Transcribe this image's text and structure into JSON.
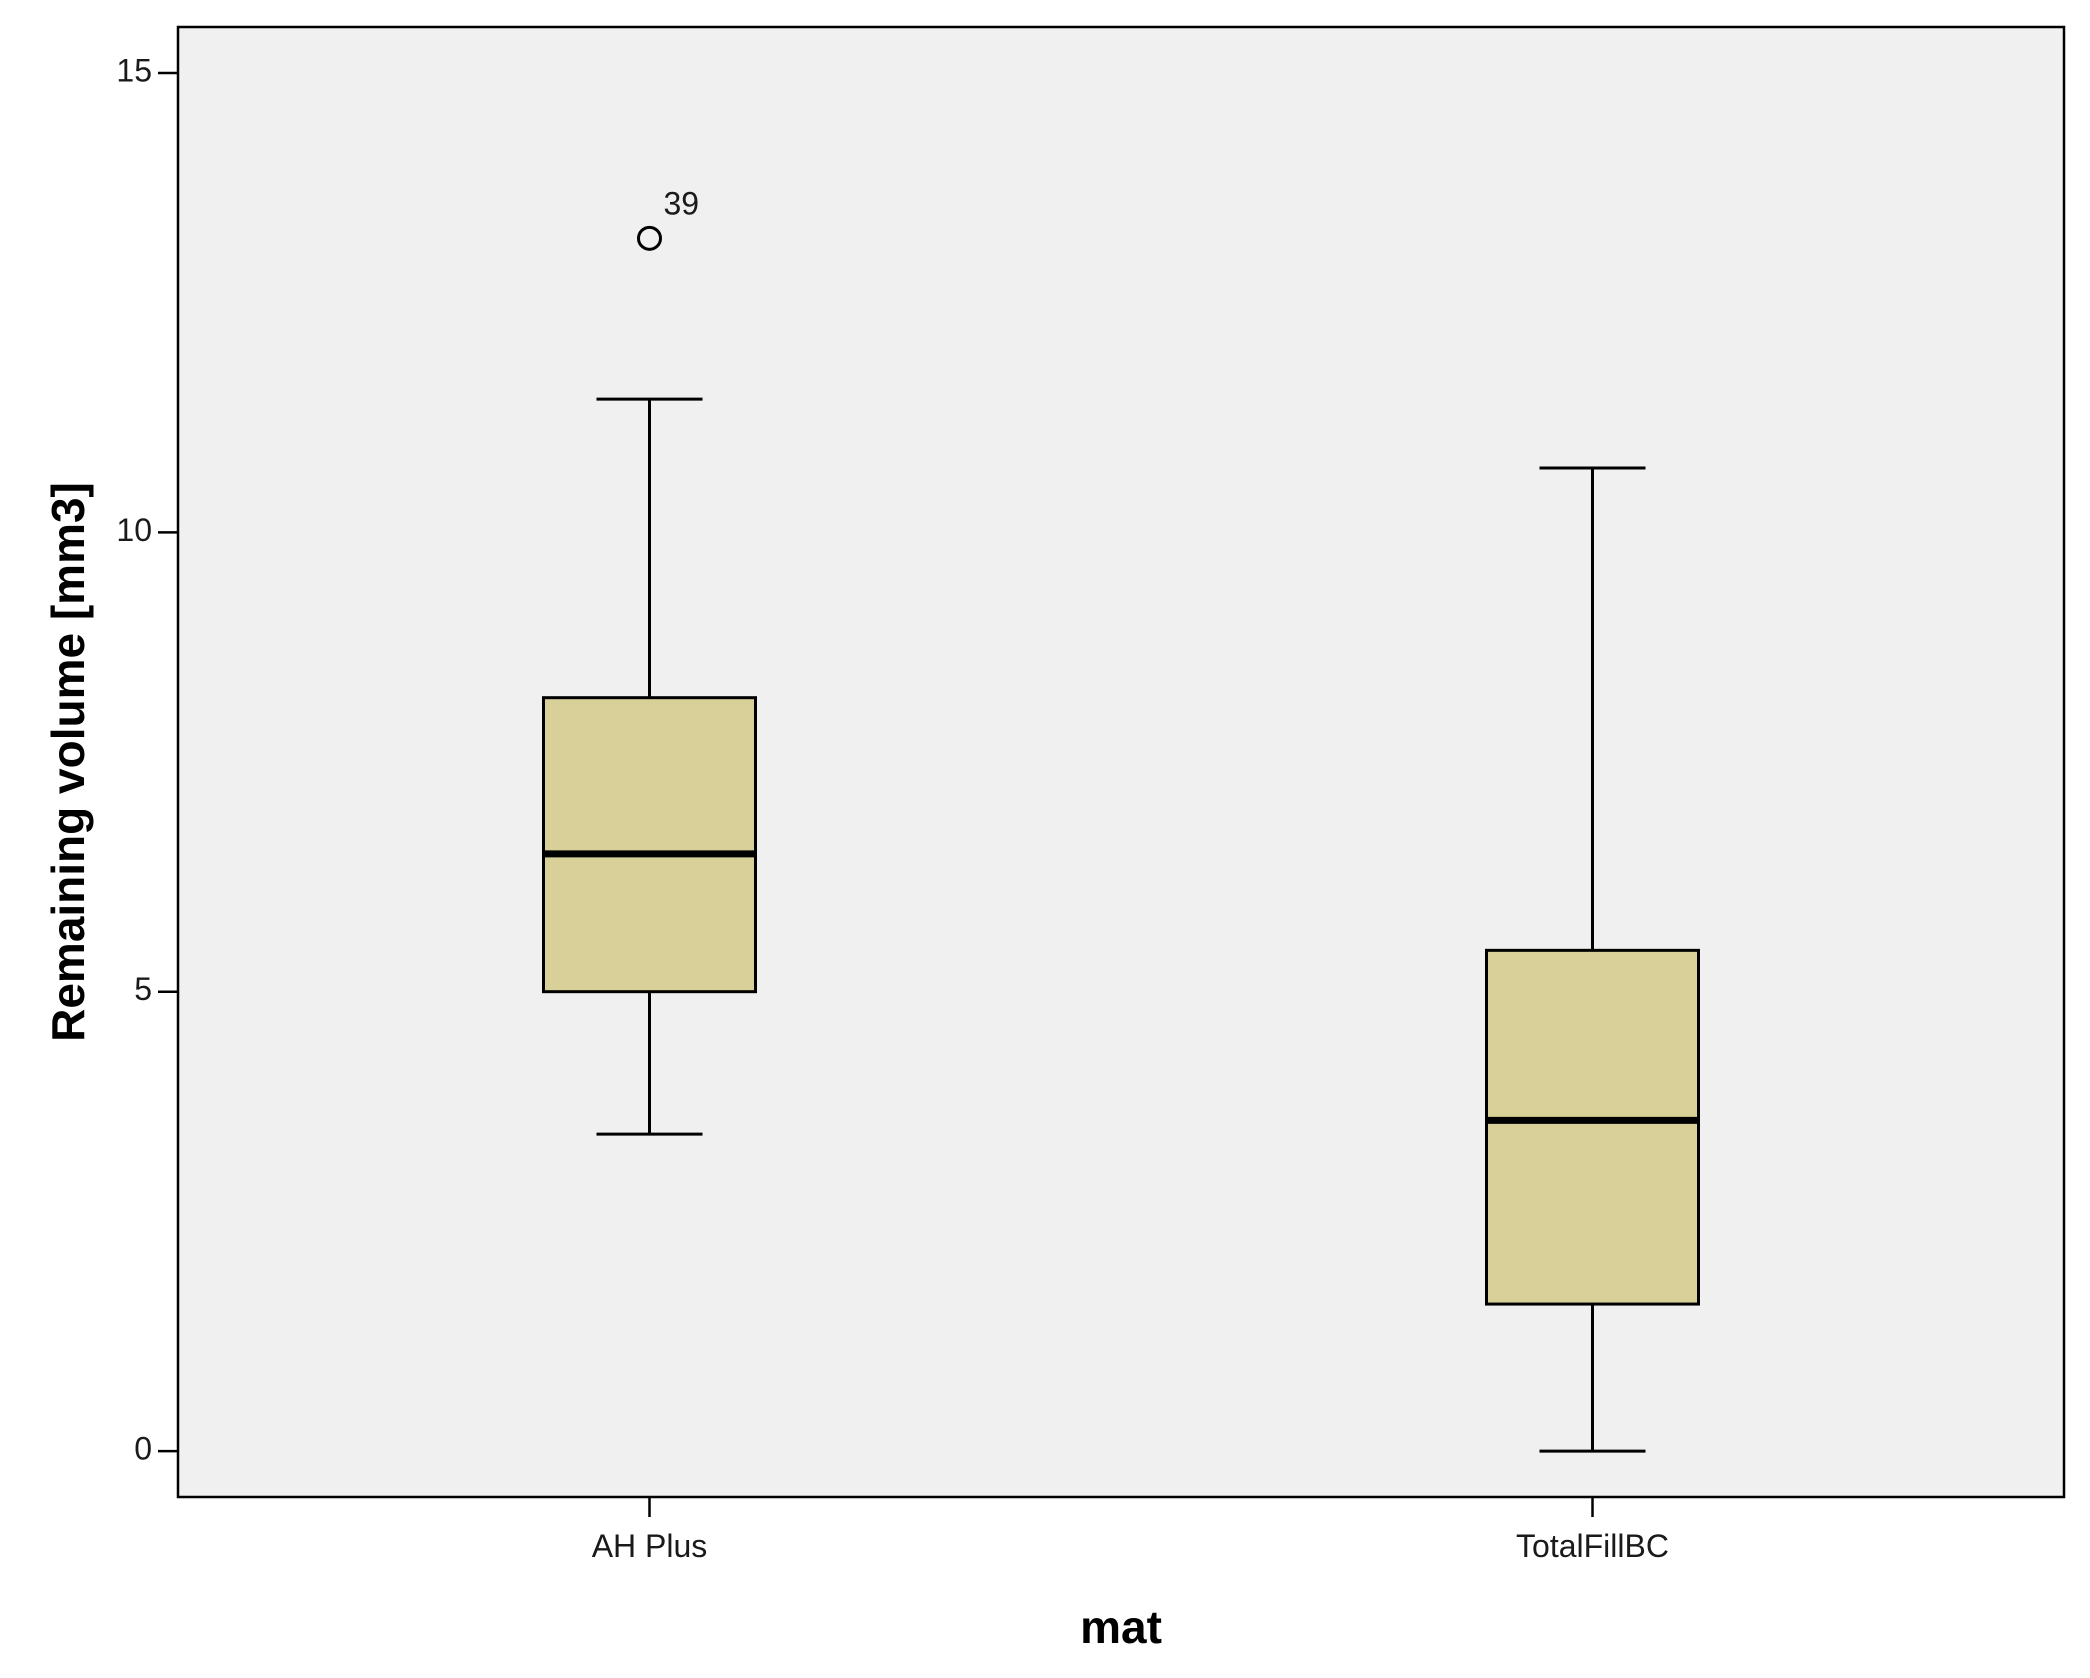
{
  "chart_data": {
    "type": "boxplot",
    "title": "",
    "xlabel": "mat",
    "ylabel": "Remaining volume [mm3]",
    "ylim": [
      -0.5,
      15.5
    ],
    "yticks": [
      0,
      5,
      10,
      15
    ],
    "grid": false,
    "categories": [
      "AH Plus",
      "TotalFillBC"
    ],
    "boxes": [
      {
        "category": "AH Plus",
        "whisker_low": 3.45,
        "q1": 5.0,
        "median": 6.5,
        "q3": 8.2,
        "whisker_high": 11.45,
        "outliers": [
          {
            "value": 13.2,
            "label": "39"
          }
        ]
      },
      {
        "category": "TotalFillBC",
        "whisker_low": 0.0,
        "q1": 1.6,
        "median": 3.6,
        "q3": 5.45,
        "whisker_high": 10.7,
        "outliers": []
      }
    ],
    "colors": {
      "plot_background": "#f0f0f0",
      "box_fill": "#d8d098",
      "stroke": "#000000"
    }
  }
}
